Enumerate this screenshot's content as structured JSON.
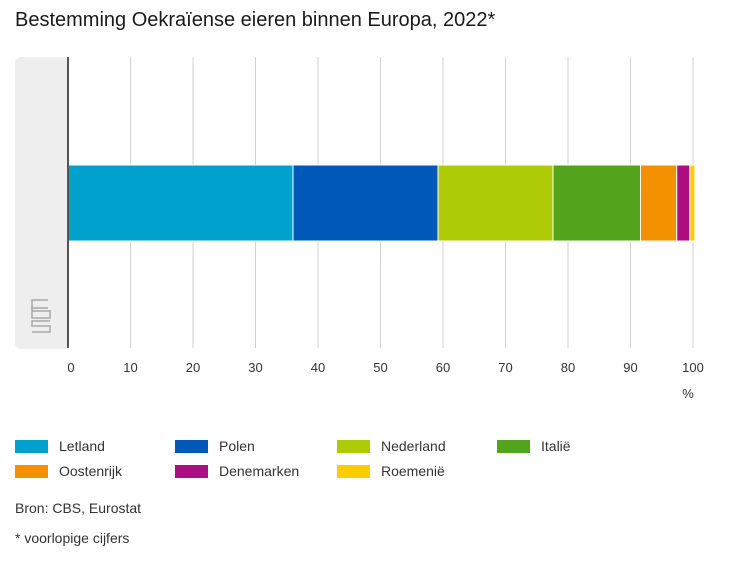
{
  "title": "Bestemming Oekraïense eieren binnen Europa, 2022*",
  "x_unit": "%",
  "source": "Bron: CBS, Eurostat",
  "footnote": "* voorlopige cijfers",
  "logo": {
    "text": "cbs",
    "icon": "cbs-logo-icon"
  },
  "chart_data": {
    "type": "bar",
    "orientation": "horizontal",
    "stacked": true,
    "title": "Bestemming Oekraïense eieren binnen Europa, 2022*",
    "xlabel": "%",
    "ylabel": "",
    "xlim": [
      0,
      100
    ],
    "xticks": [
      0,
      10,
      20,
      30,
      40,
      50,
      60,
      70,
      80,
      90,
      100
    ],
    "grid": "vertical",
    "legend_position": "bottom",
    "categories": [
      ""
    ],
    "series": [
      {
        "name": "Letland",
        "values": [
          36.0
        ],
        "color": "#00a1cd"
      },
      {
        "name": "Polen",
        "values": [
          23.2
        ],
        "color": "#0058b8"
      },
      {
        "name": "Nederland",
        "values": [
          18.4
        ],
        "color": "#afcb05"
      },
      {
        "name": "Italië",
        "values": [
          14.0
        ],
        "color": "#53a31d"
      },
      {
        "name": "Oostenrijk",
        "values": [
          5.8
        ],
        "color": "#f39200"
      },
      {
        "name": "Denemarken",
        "values": [
          2.1
        ],
        "color": "#af0e80"
      },
      {
        "name": "Roemenië",
        "values": [
          0.8
        ],
        "color": "#ffcc00"
      }
    ]
  }
}
